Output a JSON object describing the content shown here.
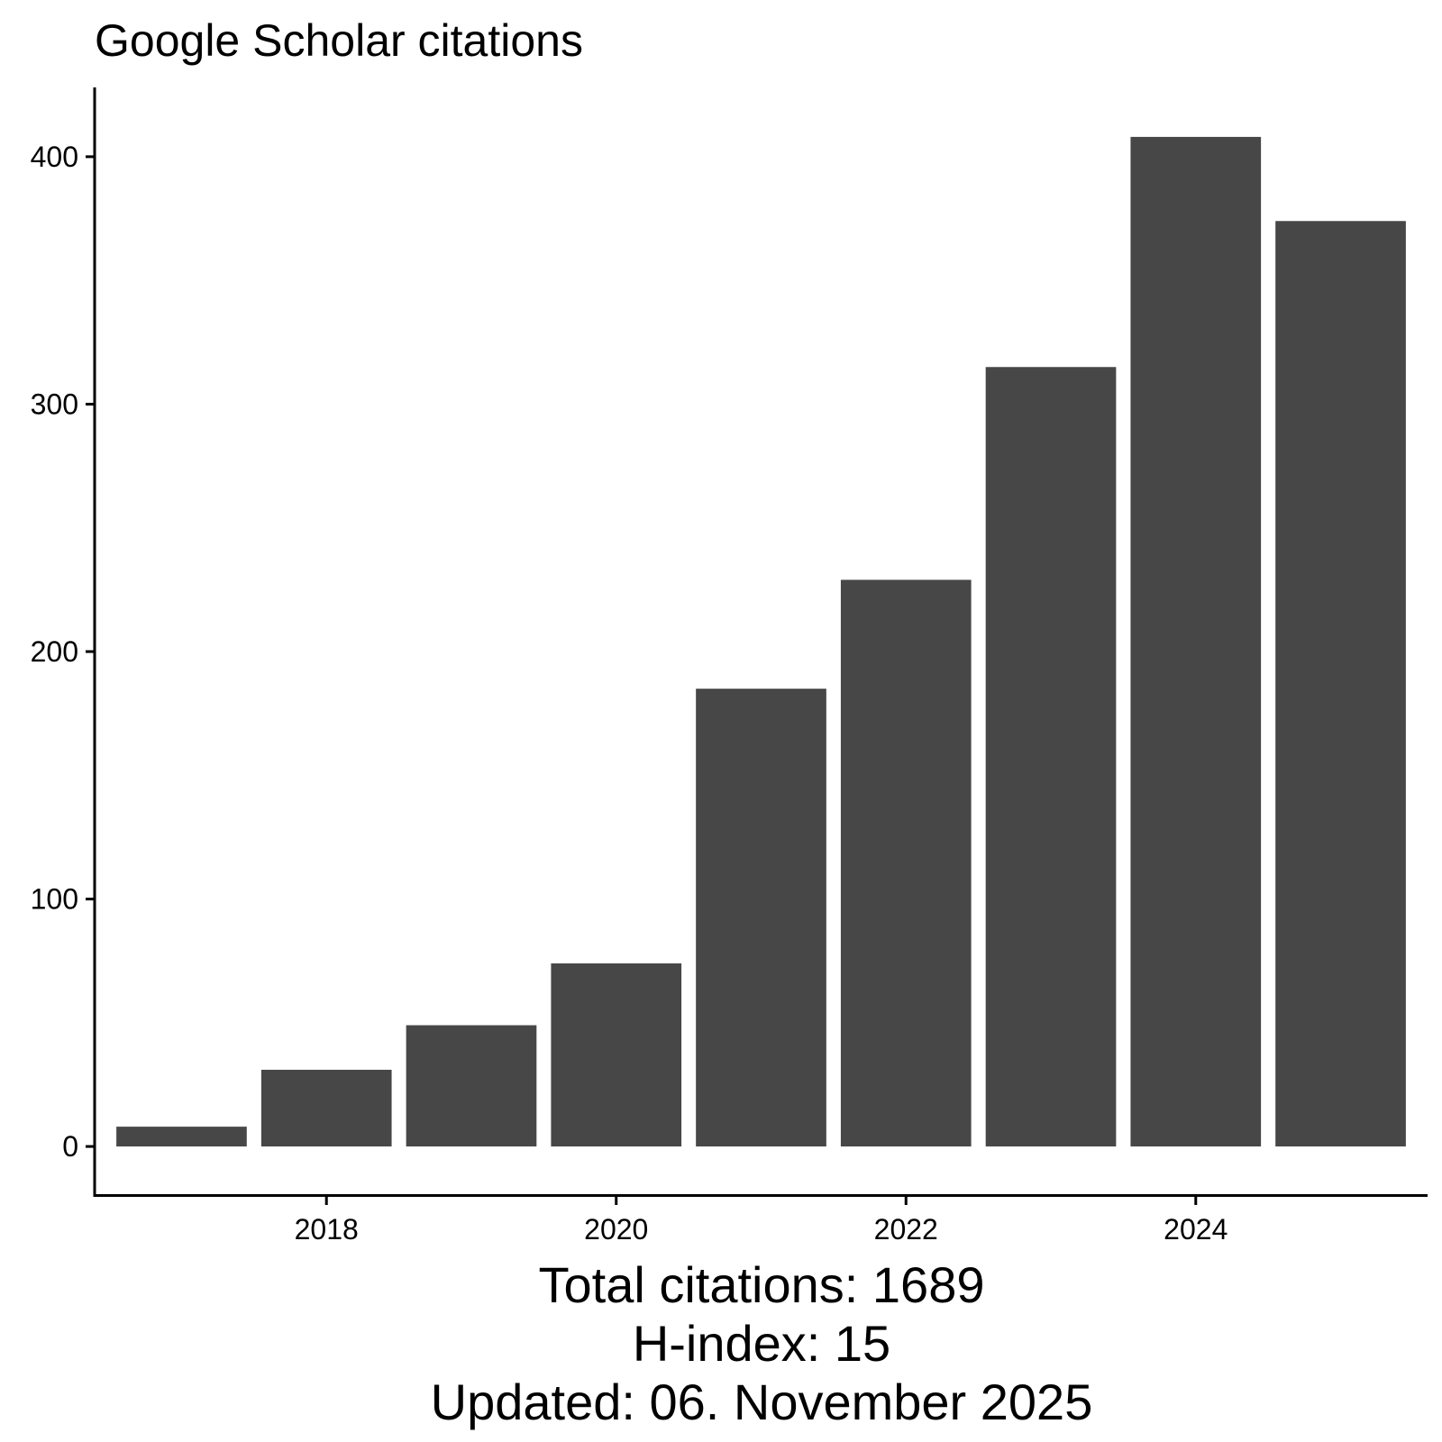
{
  "chart_data": {
    "type": "bar",
    "title": "Google Scholar citations",
    "xlabel": "",
    "ylabel": "",
    "categories": [
      2017,
      2018,
      2019,
      2020,
      2021,
      2022,
      2023,
      2024,
      2025
    ],
    "values": [
      8,
      31,
      49,
      74,
      185,
      229,
      315,
      408,
      374
    ],
    "x_ticks": [
      2018,
      2020,
      2022,
      2024
    ],
    "y_ticks": [
      0,
      100,
      200,
      300,
      400
    ],
    "ylim": [
      -20,
      428
    ],
    "xlim": [
      2016.4,
      2025.6
    ],
    "grid": false,
    "legend": "none",
    "bar_color": "#474747",
    "caption": [
      "Total citations: 1689",
      "H-index: 15",
      "Updated: 06. November 2025"
    ]
  }
}
